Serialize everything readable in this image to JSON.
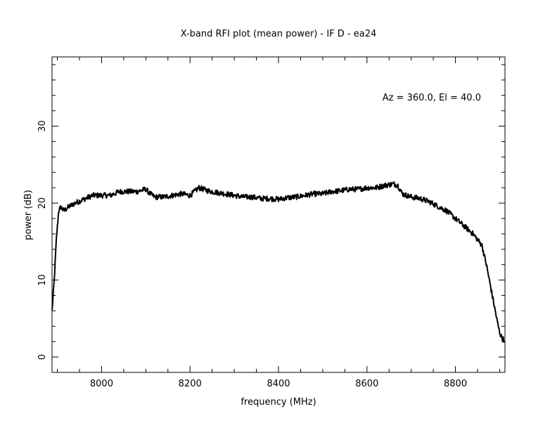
{
  "chart_data": {
    "type": "line",
    "title": "X-band RFI plot (mean power) - IF D - ea24",
    "xlabel": "frequency (MHz)",
    "ylabel": "power (dB)",
    "annotation": "Az = 360.0, El = 40.0",
    "xlim": [
      7888,
      8912
    ],
    "ylim": [
      -2,
      39
    ],
    "x_ticks": [
      8000,
      8200,
      8400,
      8600,
      8800
    ],
    "y_ticks": [
      0,
      10,
      20,
      30
    ],
    "grid": false,
    "line_color": "#000000",
    "series": [
      {
        "x": [
          7888,
          7893,
          7898,
          7903,
          7908,
          7915,
          7925,
          7940,
          7960,
          7980,
          8000,
          8020,
          8040,
          8060,
          8080,
          8100,
          8110,
          8120,
          8140,
          8160,
          8180,
          8200,
          8220,
          8240,
          8260,
          8280,
          8300,
          8320,
          8340,
          8360,
          8380,
          8400,
          8420,
          8440,
          8460,
          8480,
          8500,
          8520,
          8540,
          8560,
          8580,
          8600,
          8620,
          8640,
          8660,
          8670,
          8680,
          8700,
          8720,
          8740,
          8760,
          8780,
          8800,
          8820,
          8840,
          8860,
          8870,
          8880,
          8890,
          8895,
          8900,
          8905,
          8910
        ],
        "y": [
          6.0,
          10.0,
          15.5,
          19.0,
          19.5,
          19.0,
          19.5,
          20.0,
          20.5,
          21.0,
          21.0,
          21.0,
          21.5,
          21.5,
          21.5,
          21.8,
          21.2,
          20.8,
          20.8,
          21.0,
          21.2,
          21.0,
          22.0,
          21.6,
          21.4,
          21.2,
          21.0,
          20.8,
          20.8,
          20.6,
          20.6,
          20.5,
          20.7,
          20.8,
          21.0,
          21.2,
          21.2,
          21.5,
          21.6,
          21.8,
          21.8,
          22.0,
          22.0,
          22.3,
          22.5,
          22.3,
          21.2,
          20.8,
          20.6,
          20.2,
          19.6,
          19.0,
          18.0,
          17.0,
          16.0,
          14.5,
          12.0,
          9.0,
          6.0,
          4.5,
          3.2,
          2.5,
          2.2
        ]
      }
    ]
  }
}
